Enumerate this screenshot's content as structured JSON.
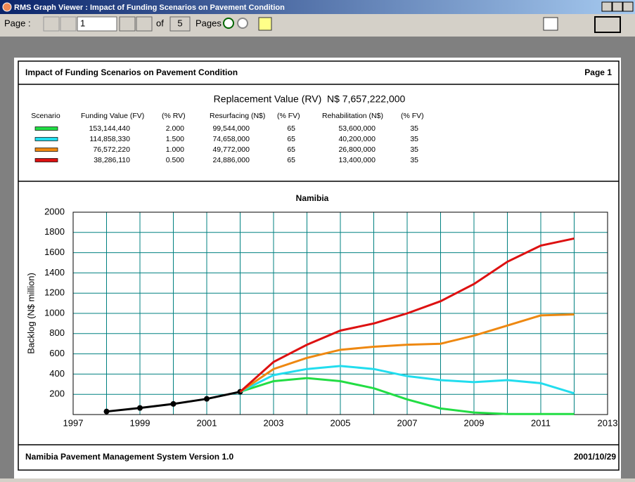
{
  "window": {
    "title": "RMS Graph Viewer : Impact of Funding Scenarios on Pavement Condition"
  },
  "toolbar": {
    "page_label": "Page :",
    "page_input": "1",
    "of": "of",
    "page_count": "5",
    "pages": "Pages"
  },
  "report": {
    "title": "Impact of Funding Scenarios on Pavement Condition",
    "page": "Page 1",
    "replacement_value": "Replacement Value (RV)  N$ 7,657,222,000",
    "table": {
      "headers": [
        "Scenario",
        "Funding Value (FV)",
        "(% RV)",
        "Resurfacing (N$)",
        "(% FV)",
        "Rehabilitation (N$)",
        "(% FV)"
      ],
      "rows": [
        [
          "153,144,440",
          "2.000",
          "99,544,000",
          "65",
          "53,600,000",
          "35"
        ],
        [
          "114,858,330",
          "1.500",
          "74,658,000",
          "65",
          "40,200,000",
          "35"
        ],
        [
          "76,572,220",
          "1.000",
          "49,772,000",
          "65",
          "26,800,000",
          "35"
        ],
        [
          "38,286,110",
          "0.500",
          "24,886,000",
          "65",
          "13,400,000",
          "35"
        ]
      ]
    },
    "footer_left": "Namibia Pavement Management System Version 1.0",
    "footer_right": "2001/10/29"
  },
  "chart_data": {
    "type": "line",
    "title": "Namibia",
    "y_label": "Backlog (N$ million)",
    "x": [
      1998,
      1999,
      2000,
      2001,
      2002,
      2003,
      2004,
      2005,
      2006,
      2007,
      2008,
      2009,
      2010,
      2011,
      2012
    ],
    "series": [
      {
        "color": "#000000",
        "markers": true,
        "values": [
          30,
          65,
          105,
          155,
          225,
          null,
          null,
          null,
          null,
          null,
          null,
          null,
          null,
          null,
          null
        ]
      },
      {
        "color": "#22dd44",
        "values": [
          null,
          null,
          null,
          null,
          225,
          330,
          360,
          330,
          260,
          150,
          60,
          20,
          5,
          5,
          5
        ]
      },
      {
        "color": "#22ddee",
        "values": [
          null,
          null,
          null,
          null,
          225,
          390,
          450,
          480,
          450,
          380,
          340,
          320,
          340,
          310,
          210
        ]
      },
      {
        "color": "#ee8811",
        "values": [
          null,
          null,
          null,
          null,
          225,
          450,
          560,
          640,
          670,
          690,
          700,
          780,
          880,
          980,
          990
        ]
      },
      {
        "color": "#dd1111",
        "values": [
          null,
          null,
          null,
          null,
          225,
          520,
          690,
          830,
          900,
          1000,
          1120,
          1290,
          1510,
          1670,
          1740
        ]
      }
    ],
    "xlim": [
      1997,
      2013
    ],
    "xticks": [
      1997,
      1999,
      2001,
      2003,
      2005,
      2007,
      2009,
      2011,
      2013
    ],
    "xgrid": [
      1997,
      1998,
      1999,
      2000,
      2001,
      2002,
      2003,
      2004,
      2005,
      2006,
      2007,
      2008,
      2009,
      2010,
      2011,
      2012,
      2013
    ],
    "ylim": [
      0,
      2000
    ],
    "yticks": [
      200,
      400,
      600,
      800,
      1000,
      1200,
      1400,
      1600,
      1800,
      2000
    ],
    "grid": true,
    "grid_color": "#008080"
  }
}
